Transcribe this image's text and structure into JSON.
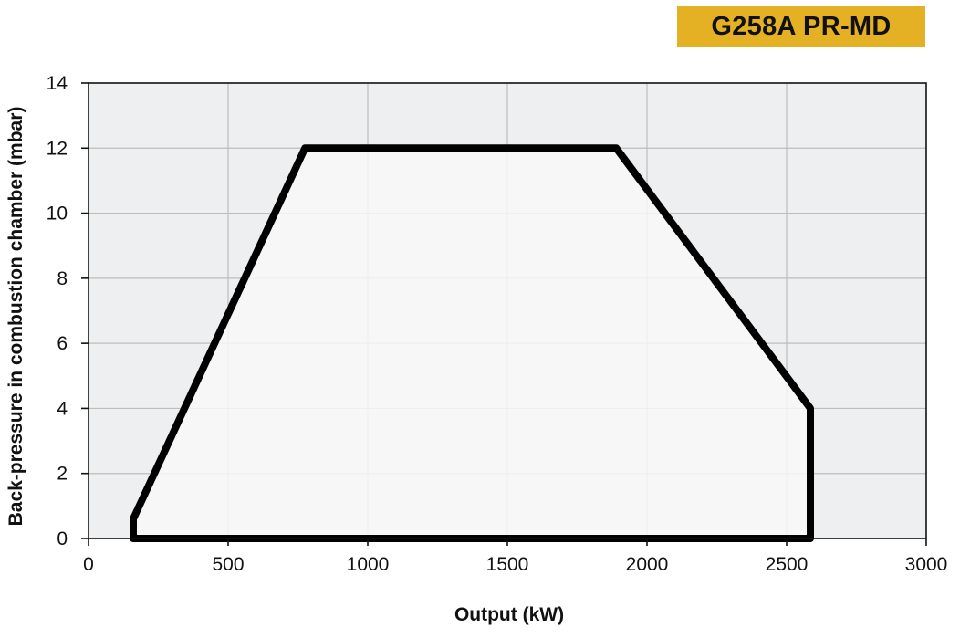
{
  "badge": {
    "label": "G258A PR-MD",
    "color": "#e4b124"
  },
  "chart_data": {
    "type": "area",
    "title": "",
    "xlabel": "Output (kW)",
    "ylabel": "Back-pressure in combustion chamber (mbar)",
    "xlim": [
      0,
      3000
    ],
    "ylim": [
      0,
      14
    ],
    "x_ticks": [
      0,
      500,
      1000,
      1500,
      2000,
      2500,
      3000
    ],
    "y_ticks": [
      0,
      2,
      4,
      6,
      8,
      10,
      12,
      14
    ],
    "grid": true,
    "legend": "none",
    "series": [
      {
        "x": [
          160,
          160,
          775,
          1890,
          2585,
          2585,
          160
        ],
        "y": [
          0,
          0.6,
          12,
          12,
          4,
          0,
          0
        ]
      }
    ],
    "colors": {
      "plot_background": "#eeeff1",
      "envelope_fill": "#f8f8f8",
      "envelope_stroke": "#000000",
      "grid": "#bdbdbd"
    }
  }
}
